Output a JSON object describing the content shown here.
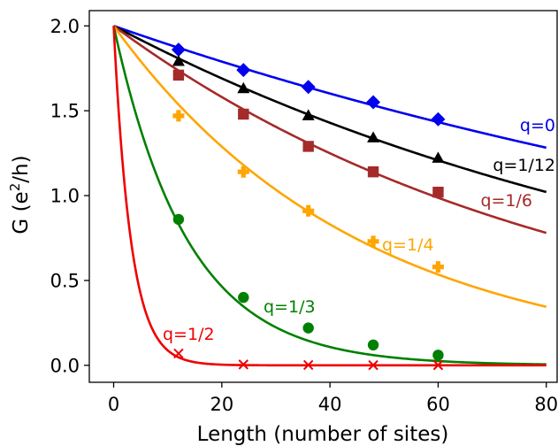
{
  "chart_data": {
    "type": "scatter",
    "xlabel": "Length (number of sites)",
    "ylabel_main": "G (e",
    "ylabel_sup": "2",
    "ylabel_end": "/h)",
    "xlim": [
      -4.5,
      82
    ],
    "ylim": [
      -0.1,
      2.09
    ],
    "x_ticks": [
      0,
      20,
      40,
      60,
      80
    ],
    "x_tick_labels": [
      "0",
      "20",
      "40",
      "60",
      "80"
    ],
    "y_ticks": [
      0.0,
      0.5,
      1.0,
      1.5,
      2.0
    ],
    "y_tick_labels": [
      "0.0",
      "0.5",
      "1.0",
      "1.5",
      "2.0"
    ],
    "grid": false,
    "series": [
      {
        "name": "q=0",
        "color": "#0000ee",
        "marker": "diamond",
        "fit": {
          "model": "2*exp(-L/xi)",
          "xi": 180
        },
        "points": [
          {
            "x": 12,
            "y": 1.86
          },
          {
            "x": 24,
            "y": 1.74
          },
          {
            "x": 36,
            "y": 1.64
          },
          {
            "x": 48,
            "y": 1.55
          },
          {
            "x": 60,
            "y": 1.45
          }
        ]
      },
      {
        "name": "q=1/12",
        "color": "#000000",
        "marker": "triangle",
        "fit": {
          "model": "2*exp(-L/xi)",
          "xi": 119
        },
        "points": [
          {
            "x": 12,
            "y": 1.79
          },
          {
            "x": 24,
            "y": 1.63
          },
          {
            "x": 36,
            "y": 1.47
          },
          {
            "x": 48,
            "y": 1.34
          },
          {
            "x": 60,
            "y": 1.22
          }
        ]
      },
      {
        "name": "q=1/6",
        "color": "#a52a2a",
        "marker": "square",
        "fit": {
          "model": "2*exp(-L/xi)",
          "xi": 85
        },
        "points": [
          {
            "x": 12,
            "y": 1.71
          },
          {
            "x": 24,
            "y": 1.48
          },
          {
            "x": 36,
            "y": 1.29
          },
          {
            "x": 48,
            "y": 1.14
          },
          {
            "x": 60,
            "y": 1.02
          }
        ]
      },
      {
        "name": "q=1/4",
        "color": "#ffa500",
        "marker": "plus",
        "fit": {
          "model": "2*exp(-L/xi)",
          "xi": 45.5
        },
        "points": [
          {
            "x": 12,
            "y": 1.47
          },
          {
            "x": 24,
            "y": 1.14
          },
          {
            "x": 36,
            "y": 0.91
          },
          {
            "x": 48,
            "y": 0.73
          },
          {
            "x": 60,
            "y": 0.58
          }
        ]
      },
      {
        "name": "q=1/3",
        "color": "#008000",
        "marker": "circle",
        "fit": {
          "model": "2*exp(-L/xi)",
          "xi": 13.7
        },
        "points": [
          {
            "x": 12,
            "y": 0.86
          },
          {
            "x": 24,
            "y": 0.4
          },
          {
            "x": 36,
            "y": 0.22
          },
          {
            "x": 48,
            "y": 0.12
          },
          {
            "x": 60,
            "y": 0.06
          }
        ]
      },
      {
        "name": "q=1/2",
        "color": "#ee0000",
        "marker": "x",
        "fit": {
          "model": "2*exp(-L/xi)",
          "xi": 3.2
        },
        "points": [
          {
            "x": 12,
            "y": 0.07
          },
          {
            "x": 24,
            "y": 0.005
          },
          {
            "x": 36,
            "y": 0.002
          },
          {
            "x": 48,
            "y": 0.001
          },
          {
            "x": 60,
            "y": 0.001
          }
        ]
      }
    ]
  }
}
